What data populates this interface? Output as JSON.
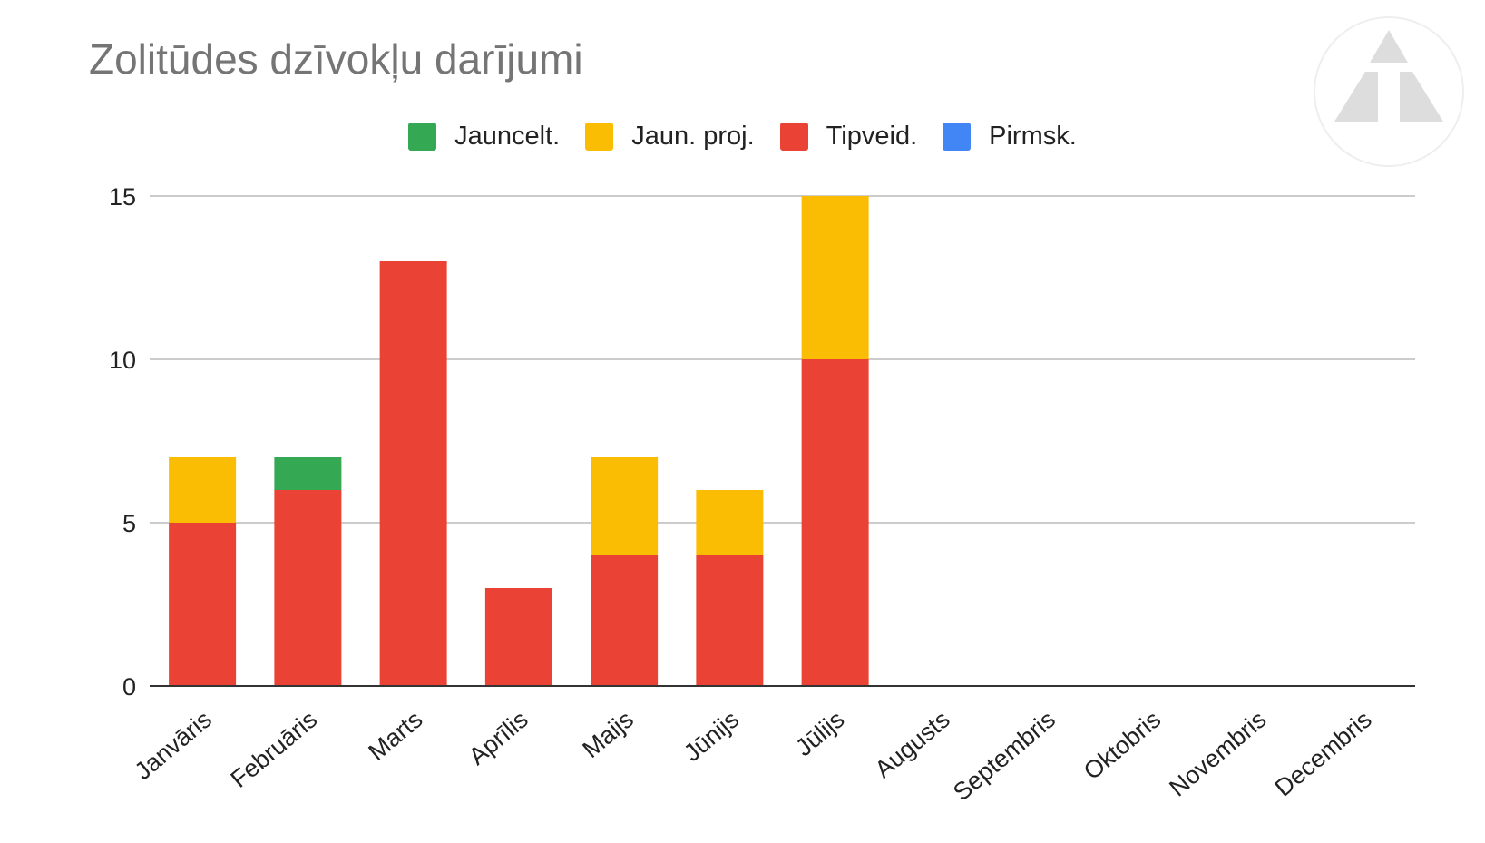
{
  "colors": {
    "jauncelt": "#34A853",
    "jaun_proj": "#FBBC04",
    "tipveid": "#EA4335",
    "pirmsk": "#4285F4",
    "gridline": "#cccccc",
    "axis": "#333333",
    "title": "#757575",
    "text": "#222222"
  },
  "chart_data": {
    "type": "bar",
    "stacked": true,
    "title": "Zolitūdes dzīvokļu darījumi",
    "xlabel": "",
    "ylabel": "",
    "ylim": [
      0,
      15
    ],
    "yticks": [
      0,
      5,
      10,
      15
    ],
    "grid": true,
    "legend_position": "top",
    "categories": [
      "Janvāris",
      "Februāris",
      "Marts",
      "Aprīlis",
      "Maijs",
      "Jūnijs",
      "Jūlijs",
      "Augusts",
      "Septembris",
      "Oktobris",
      "Novembris",
      "Decembris"
    ],
    "series": [
      {
        "name": "Pirmsk.",
        "color_key": "pirmsk",
        "values": [
          0,
          0,
          0,
          0,
          0,
          0,
          0,
          0,
          0,
          0,
          0,
          0
        ]
      },
      {
        "name": "Tipveid.",
        "color_key": "tipveid",
        "values": [
          5,
          6,
          13,
          3,
          4,
          4,
          10,
          0,
          0,
          0,
          0,
          0
        ]
      },
      {
        "name": "Jaun. proj.",
        "color_key": "jaun_proj",
        "values": [
          2,
          0,
          0,
          0,
          3,
          2,
          5,
          0,
          0,
          0,
          0,
          0
        ]
      },
      {
        "name": "Jauncelt.",
        "color_key": "jauncelt",
        "values": [
          0,
          1,
          0,
          0,
          0,
          0,
          0,
          0,
          0,
          0,
          0,
          0
        ]
      }
    ],
    "legend_order": [
      "Jauncelt.",
      "Jaun. proj.",
      "Tipveid.",
      "Pirmsk."
    ]
  },
  "logo": {
    "icon": "triangle-logo-icon"
  }
}
